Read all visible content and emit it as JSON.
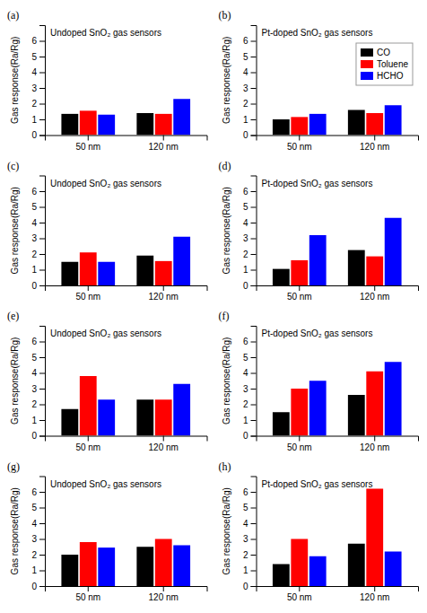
{
  "chart_data": [
    {
      "type": "bar",
      "title": "Undoped SnO₂ gas sensors",
      "annotations": [
        "(a)"
      ],
      "ylabel": "Gas response(Ra/Rg)",
      "categories": [
        "50 nm",
        "120 nm"
      ],
      "series": [
        {
          "name": "CO",
          "color": "#000000",
          "values": [
            1.35,
            1.4
          ]
        },
        {
          "name": "Toluene",
          "color": "#ff0000",
          "values": [
            1.55,
            1.35
          ]
        },
        {
          "name": "HCHO",
          "color": "#0000ff",
          "values": [
            1.3,
            2.3
          ]
        }
      ],
      "ylim": [
        0,
        7
      ],
      "yticks": [
        0,
        1,
        2,
        3,
        4,
        5,
        6
      ],
      "grid": false
    },
    {
      "type": "bar",
      "title": "Pt-doped SnO₂ gas sensors",
      "annotations": [
        "(b)"
      ],
      "ylabel": "Gas response(Ra/Rg)",
      "categories": [
        "50 nm",
        "120 nm"
      ],
      "series": [
        {
          "name": "CO",
          "color": "#000000",
          "values": [
            1.0,
            1.6
          ]
        },
        {
          "name": "Toluene",
          "color": "#ff0000",
          "values": [
            1.15,
            1.4
          ]
        },
        {
          "name": "HCHO",
          "color": "#0000ff",
          "values": [
            1.35,
            1.9
          ]
        }
      ],
      "ylim": [
        0,
        7
      ],
      "yticks": [
        0,
        1,
        2,
        3,
        4,
        5,
        6
      ],
      "grid": false,
      "legend": "upper right"
    },
    {
      "type": "bar",
      "title": "Undoped SnO₂ gas sensors",
      "annotations": [
        "(c)"
      ],
      "ylabel": "Gas response(Ra/Rg)",
      "categories": [
        "50 nm",
        "120 nm"
      ],
      "series": [
        {
          "name": "CO",
          "color": "#000000",
          "values": [
            1.5,
            1.9
          ]
        },
        {
          "name": "Toluene",
          "color": "#ff0000",
          "values": [
            2.1,
            1.55
          ]
        },
        {
          "name": "HCHO",
          "color": "#0000ff",
          "values": [
            1.5,
            3.1
          ]
        }
      ],
      "ylim": [
        0,
        7
      ],
      "yticks": [
        0,
        1,
        2,
        3,
        4,
        5,
        6
      ],
      "grid": false
    },
    {
      "type": "bar",
      "title": "Pt-doped SnO₂ gas sensors",
      "annotations": [
        "(d)"
      ],
      "ylabel": "Gas response(Ra/Rg)",
      "categories": [
        "50 nm",
        "120 nm"
      ],
      "series": [
        {
          "name": "CO",
          "color": "#000000",
          "values": [
            1.05,
            2.25
          ]
        },
        {
          "name": "Toluene",
          "color": "#ff0000",
          "values": [
            1.6,
            1.85
          ]
        },
        {
          "name": "HCHO",
          "color": "#0000ff",
          "values": [
            3.2,
            4.3
          ]
        }
      ],
      "ylim": [
        0,
        7
      ],
      "yticks": [
        0,
        1,
        2,
        3,
        4,
        5,
        6
      ],
      "grid": false
    },
    {
      "type": "bar",
      "title": "Undoped SnO₂ gas sensors",
      "annotations": [
        "(e)"
      ],
      "ylabel": "Gas response(Ra/Rg)",
      "categories": [
        "50 nm",
        "120 nm"
      ],
      "series": [
        {
          "name": "CO",
          "color": "#000000",
          "values": [
            1.7,
            2.3
          ]
        },
        {
          "name": "Toluene",
          "color": "#ff0000",
          "values": [
            3.8,
            2.3
          ]
        },
        {
          "name": "HCHO",
          "color": "#0000ff",
          "values": [
            2.3,
            3.3
          ]
        }
      ],
      "ylim": [
        0,
        7
      ],
      "yticks": [
        0,
        1,
        2,
        3,
        4,
        5,
        6
      ],
      "grid": false
    },
    {
      "type": "bar",
      "title": "Pt-doped SnO₂ gas sensors",
      "annotations": [
        "(f)"
      ],
      "ylabel": "Gas response(Ra/Rg)",
      "categories": [
        "50 nm",
        "120 nm"
      ],
      "series": [
        {
          "name": "CO",
          "color": "#000000",
          "values": [
            1.5,
            2.6
          ]
        },
        {
          "name": "Toluene",
          "color": "#ff0000",
          "values": [
            3.0,
            4.1
          ]
        },
        {
          "name": "HCHO",
          "color": "#0000ff",
          "values": [
            3.5,
            4.7
          ]
        }
      ],
      "ylim": [
        0,
        7
      ],
      "yticks": [
        0,
        1,
        2,
        3,
        4,
        5,
        6
      ],
      "grid": false
    },
    {
      "type": "bar",
      "title": "Undoped SnO₂ gas sensors",
      "annotations": [
        "(g)"
      ],
      "ylabel": "Gas response(Ra/Rg)",
      "categories": [
        "50 nm",
        "120 nm"
      ],
      "series": [
        {
          "name": "CO",
          "color": "#000000",
          "values": [
            2.0,
            2.5
          ]
        },
        {
          "name": "Toluene",
          "color": "#ff0000",
          "values": [
            2.8,
            3.0
          ]
        },
        {
          "name": "HCHO",
          "color": "#0000ff",
          "values": [
            2.45,
            2.6
          ]
        }
      ],
      "ylim": [
        0,
        7
      ],
      "yticks": [
        0,
        1,
        2,
        3,
        4,
        5,
        6
      ],
      "grid": false
    },
    {
      "type": "bar",
      "title": "Pt-doped SnO₂ gas sensors",
      "annotations": [
        "(h)"
      ],
      "ylabel": "Gas response(Ra/Rg)",
      "categories": [
        "50 nm",
        "120 nm"
      ],
      "series": [
        {
          "name": "CO",
          "color": "#000000",
          "values": [
            1.4,
            2.7
          ]
        },
        {
          "name": "Toluene",
          "color": "#ff0000",
          "values": [
            3.0,
            6.2
          ]
        },
        {
          "name": "HCHO",
          "color": "#0000ff",
          "values": [
            1.9,
            2.2
          ]
        }
      ],
      "ylim": [
        0,
        7
      ],
      "yticks": [
        0,
        1,
        2,
        3,
        4,
        5,
        6
      ],
      "grid": false
    }
  ]
}
